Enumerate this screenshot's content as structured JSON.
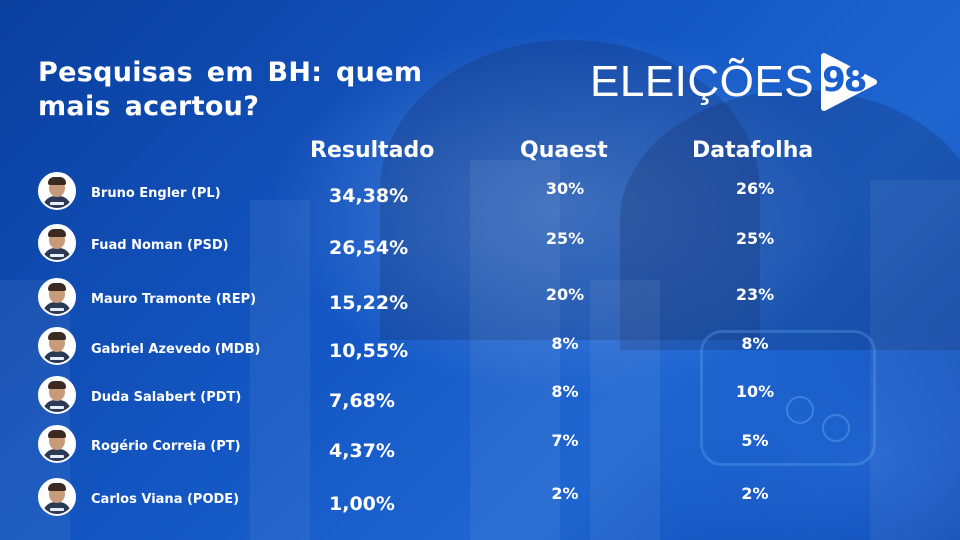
{
  "header": {
    "title": "Pesquisas em BH: quem mais acertou?",
    "logo_text": "ELEIÇÕES",
    "logo_number": "98"
  },
  "columns": {
    "resultado": "Resultado",
    "quaest": "Quaest",
    "datafolha": "Datafolha"
  },
  "rows": [
    {
      "name": "Bruno Engler (PL)",
      "resultado": "34,38%",
      "quaest": "30%",
      "datafolha": "26%"
    },
    {
      "name": "Fuad Noman (PSD)",
      "resultado": "26,54%",
      "quaest": "25%",
      "datafolha": "25%"
    },
    {
      "name": "Mauro Tramonte (REP)",
      "resultado": "15,22%",
      "quaest": "20%",
      "datafolha": "23%"
    },
    {
      "name": "Gabriel Azevedo (MDB)",
      "resultado": "10,55%",
      "quaest": "8%",
      "datafolha": "8%"
    },
    {
      "name": "Duda Salabert (PDT)",
      "resultado": "7,68%",
      "quaest": "8%",
      "datafolha": "10%"
    },
    {
      "name": "Rogério Correia (PT)",
      "resultado": "4,37%",
      "quaest": "7%",
      "datafolha": "5%"
    },
    {
      "name": "Carlos Viana (PODE)",
      "resultado": "1,00%",
      "quaest": "2%",
      "datafolha": "2%"
    }
  ],
  "colors": {
    "background": "#1457c4",
    "text": "#ffffff",
    "logo_accent": "#1a5fd0"
  }
}
